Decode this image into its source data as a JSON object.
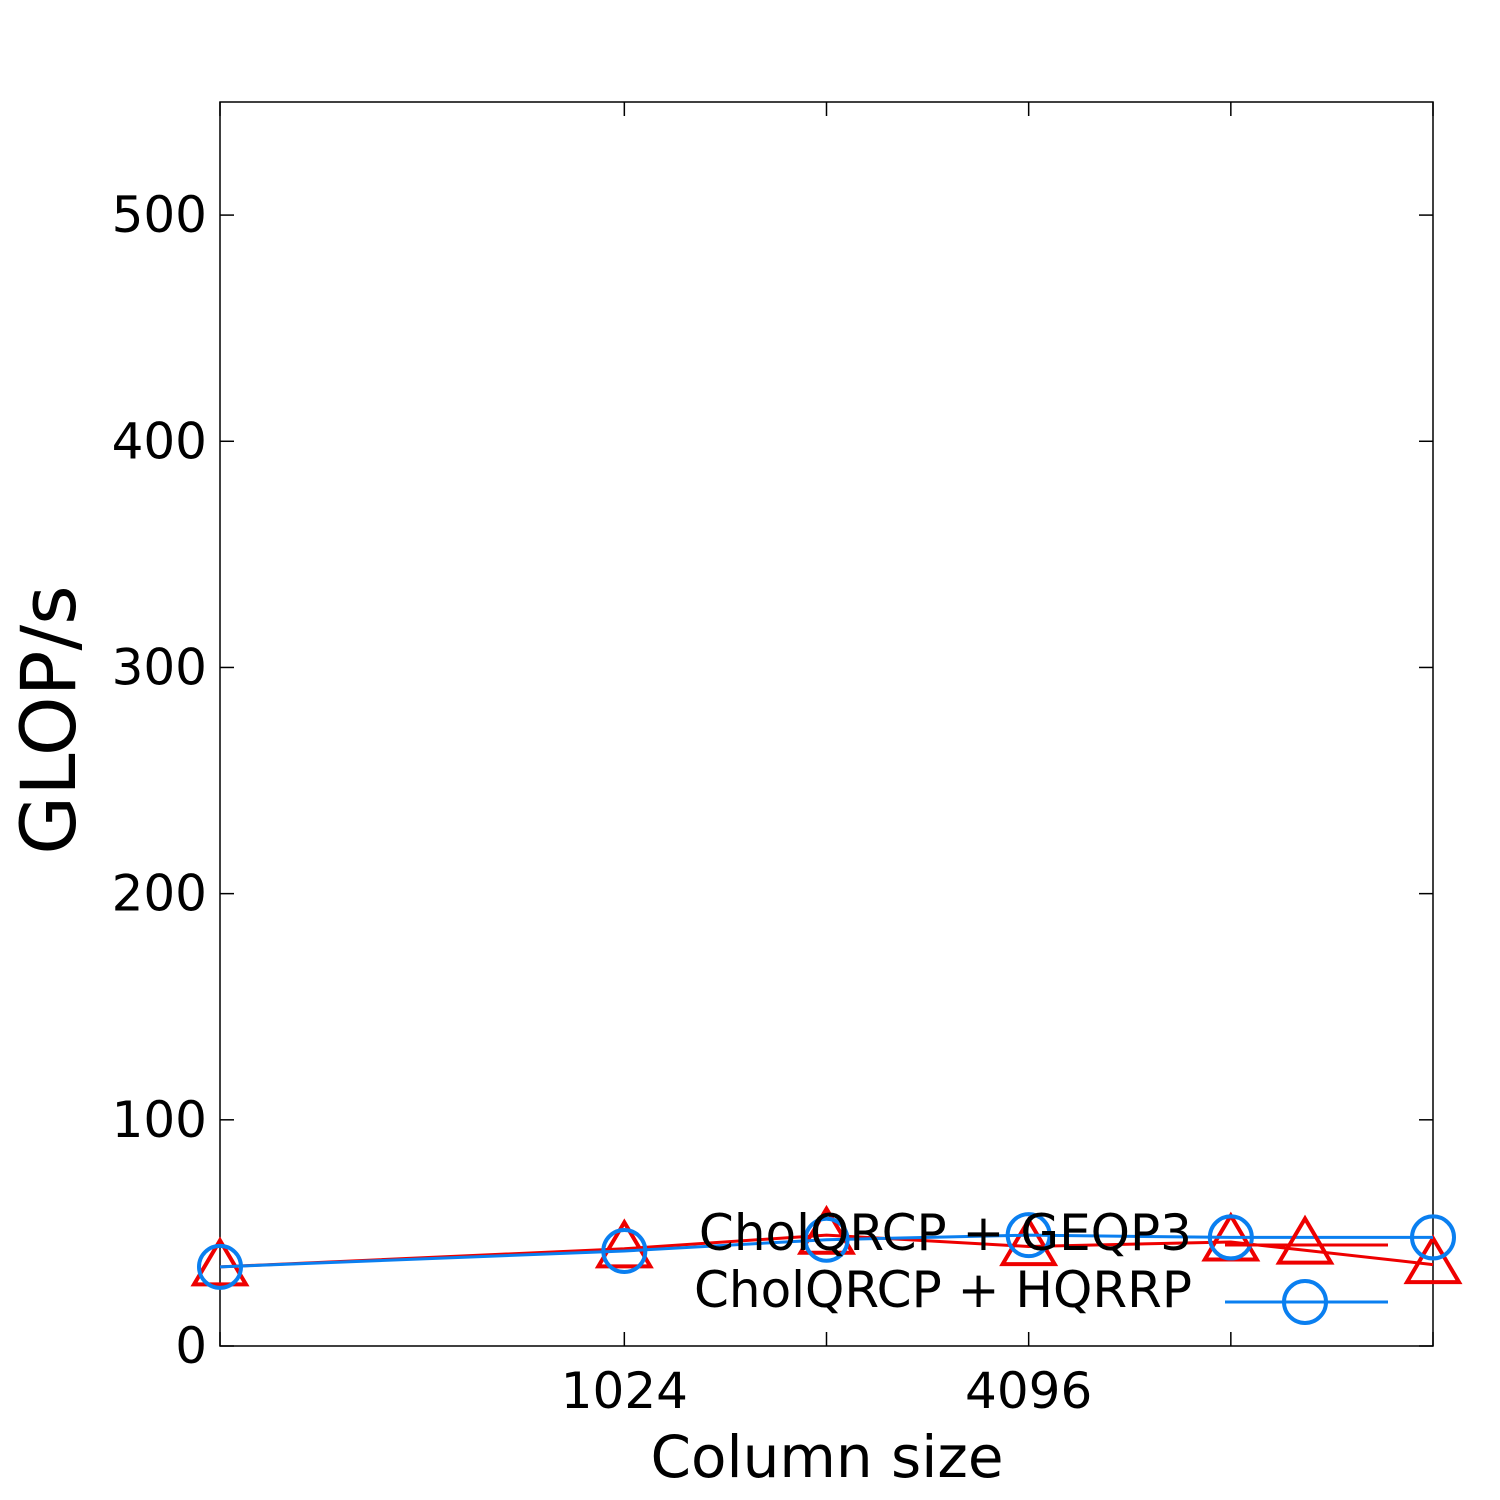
{
  "chart_data": {
    "type": "line",
    "title": "",
    "xlabel": "Column size",
    "ylabel": "GLOP/s",
    "x_scale": "log2",
    "x": [
      256,
      1024,
      2048,
      4096,
      8192,
      16384
    ],
    "x_tick_values": [
      1024,
      4096
    ],
    "x_tick_labels": [
      "1024",
      "4096"
    ],
    "xlim": [
      256,
      16384
    ],
    "ylim": [
      0,
      550
    ],
    "y_ticks": [
      0,
      100,
      200,
      300,
      400,
      500
    ],
    "y_tick_labels": [
      "0",
      "100",
      "200",
      "300",
      "400",
      "500"
    ],
    "grid": false,
    "legend_position": "bottom-right",
    "series": [
      {
        "name": "CholQRCP + GEQP3",
        "color": "#ee0000",
        "marker": "triangle",
        "values": [
          35,
          43,
          49,
          44,
          46,
          36
        ]
      },
      {
        "name": "CholQRCP + HQRRP",
        "color": "#0a7ff0",
        "marker": "circle",
        "values": [
          35,
          42,
          47,
          49,
          48,
          48
        ]
      }
    ]
  }
}
